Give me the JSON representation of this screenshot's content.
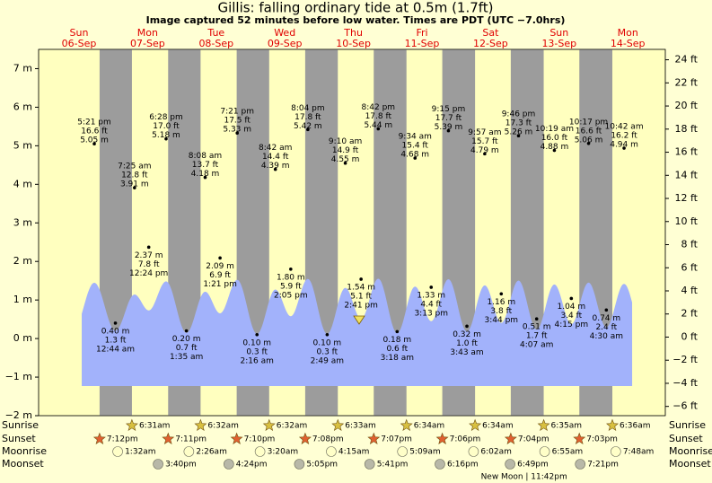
{
  "chart_data": {
    "type": "tide",
    "title": "Gillis: falling  ordinary tide at 0.5m (1.7ft)",
    "subtitle": "Image captured 52 minutes before low water. Times are PDT (UTC −7.0hrs)",
    "ylim": [
      -2,
      7.5
    ],
    "yticks": [
      {
        "value": 7,
        "label": "7 m"
      },
      {
        "value": 6,
        "label": "6 m"
      },
      {
        "value": 5,
        "label": "5 m"
      },
      {
        "value": 4,
        "label": "4 m"
      },
      {
        "value": 3,
        "label": "3 m"
      },
      {
        "value": 2,
        "label": "2 m"
      },
      {
        "value": 1,
        "label": "1 m"
      },
      {
        "value": 0,
        "label": "0 m"
      },
      {
        "value": -1,
        "label": "−1 m"
      },
      {
        "value": -2,
        "label": "−2 m"
      }
    ],
    "y2lim": [
      -6.8,
      24.9
    ],
    "y2ticks": [
      {
        "value": 24,
        "label": "24 ft"
      },
      {
        "value": 22,
        "label": "22 ft"
      },
      {
        "value": 20,
        "label": "20 ft"
      },
      {
        "value": 18,
        "label": "18 ft"
      },
      {
        "value": 16,
        "label": "16 ft"
      },
      {
        "value": 14,
        "label": "14 ft"
      },
      {
        "value": 12,
        "label": "12 ft"
      },
      {
        "value": 10,
        "label": "10 ft"
      },
      {
        "value": 8,
        "label": "8 ft"
      },
      {
        "value": 6,
        "label": "6 ft"
      },
      {
        "value": 4,
        "label": "4 ft"
      },
      {
        "value": 2,
        "label": "2 ft"
      },
      {
        "value": 0,
        "label": "0 ft"
      },
      {
        "value": -2,
        "label": "−2 ft"
      },
      {
        "value": -4,
        "label": "−4 ft"
      },
      {
        "value": -6,
        "label": "−6 ft"
      }
    ],
    "row_labels": {
      "sunrise": "Sunrise",
      "sunset": "Sunset",
      "moonrise": "Moonrise",
      "moonset": "Moonset"
    },
    "days": [
      {
        "name": "Sun",
        "date": "06-Sep",
        "sunset": "7:12pm",
        "tides": [
          {
            "time": "5:21 pm",
            "value": 5.05,
            "label": "5.05 m",
            "ft": "16.6 ft"
          }
        ]
      },
      {
        "name": "Mon",
        "date": "07-Sep",
        "sunrise": "6:31am",
        "sunset": "7:11pm",
        "moonrise": "1:32am",
        "moonset": "3:40pm",
        "tides": [
          {
            "time": "12:44 am",
            "value": 0.4,
            "label": "0.40 m",
            "ft": "1.3 ft"
          },
          {
            "time": "7:25 am",
            "value": 3.91,
            "label": "3.91 m",
            "ft": "12.8 ft"
          },
          {
            "time": "12:24 pm",
            "value": 2.37,
            "label": "2.37 m",
            "ft": "7.8 ft"
          },
          {
            "time": "6:28 pm",
            "value": 5.18,
            "label": "5.18 m",
            "ft": "17.0 ft"
          }
        ]
      },
      {
        "name": "Tue",
        "date": "08-Sep",
        "sunrise": "6:32am",
        "sunset": "7:10pm",
        "moonrise": "2:26am",
        "moonset": "4:24pm",
        "tides": [
          {
            "time": "1:35 am",
            "value": 0.2,
            "label": "0.20 m",
            "ft": "0.7 ft"
          },
          {
            "time": "8:08 am",
            "value": 4.18,
            "label": "4.18 m",
            "ft": "13.7 ft"
          },
          {
            "time": "1:21 pm",
            "value": 2.09,
            "label": "2.09 m",
            "ft": "6.9 ft"
          },
          {
            "time": "7:21 pm",
            "value": 5.33,
            "label": "5.33 m",
            "ft": "17.5 ft"
          }
        ]
      },
      {
        "name": "Wed",
        "date": "09-Sep",
        "sunrise": "6:32am",
        "sunset": "7:08pm",
        "moonrise": "3:20am",
        "moonset": "5:05pm",
        "tides": [
          {
            "time": "2:16 am",
            "value": 0.1,
            "label": "0.10 m",
            "ft": "0.3 ft"
          },
          {
            "time": "8:42 am",
            "value": 4.39,
            "label": "4.39 m",
            "ft": "14.4 ft"
          },
          {
            "time": "2:05 pm",
            "value": 1.8,
            "label": "1.80 m",
            "ft": "5.9 ft"
          },
          {
            "time": "8:04 pm",
            "value": 5.42,
            "label": "5.42 m",
            "ft": "17.8 ft"
          }
        ]
      },
      {
        "name": "Thu",
        "date": "10-Sep",
        "sunrise": "6:33am",
        "sunset": "7:07pm",
        "moonrise": "4:15am",
        "moonset": "5:41pm",
        "tides": [
          {
            "time": "2:49 am",
            "value": 0.1,
            "label": "0.10 m",
            "ft": "0.3 ft"
          },
          {
            "time": "9:10 am",
            "value": 4.55,
            "label": "4.55 m",
            "ft": "14.9 ft"
          },
          {
            "time": "2:41 pm",
            "value": 1.54,
            "label": "1.54 m",
            "ft": "5.1 ft"
          },
          {
            "time": "8:42 pm",
            "value": 5.44,
            "label": "5.44 m",
            "ft": "17.8 ft"
          }
        ]
      },
      {
        "name": "Fri",
        "date": "11-Sep",
        "sunrise": "6:34am",
        "sunset": "7:06pm",
        "moonrise": "5:09am",
        "moonset": "6:16pm",
        "tides": [
          {
            "time": "3:18 am",
            "value": 0.18,
            "label": "0.18 m",
            "ft": "0.6 ft"
          },
          {
            "time": "9:34 am",
            "value": 4.68,
            "label": "4.68 m",
            "ft": "15.4 ft"
          },
          {
            "time": "3:13 pm",
            "value": 1.33,
            "label": "1.33 m",
            "ft": "4.4 ft"
          },
          {
            "time": "9:15 pm",
            "value": 5.39,
            "label": "5.39 m",
            "ft": "17.7 ft"
          }
        ]
      },
      {
        "name": "Sat",
        "date": "12-Sep",
        "sunrise": "6:34am",
        "sunset": "7:04pm",
        "moonrise": "6:02am",
        "moonset": "6:49pm",
        "moon_phase": "New Moon | 11:42pm",
        "tides": [
          {
            "time": "3:43 am",
            "value": 0.32,
            "label": "0.32 m",
            "ft": "1.0 ft"
          },
          {
            "time": "9:57 am",
            "value": 4.79,
            "label": "4.79 m",
            "ft": "15.7 ft"
          },
          {
            "time": "3:44 pm",
            "value": 1.16,
            "label": "1.16 m",
            "ft": "3.8 ft"
          },
          {
            "time": "9:46 pm",
            "value": 5.26,
            "label": "5.26 m",
            "ft": "17.3 ft"
          }
        ]
      },
      {
        "name": "Sun",
        "date": "13-Sep",
        "sunrise": "6:35am",
        "sunset": "7:03pm",
        "moonrise": "6:55am",
        "moonset": "7:21pm",
        "tides": [
          {
            "time": "4:07 am",
            "value": 0.51,
            "label": "0.51 m",
            "ft": "1.7 ft"
          },
          {
            "time": "10:19 am",
            "value": 4.88,
            "label": "4.88 m",
            "ft": "16.0 ft"
          },
          {
            "time": "4:15 pm",
            "value": 1.04,
            "label": "1.04 m",
            "ft": "3.4 ft"
          },
          {
            "time": "10:17 pm",
            "value": 5.06,
            "label": "5.06 m",
            "ft": "16.6 ft"
          }
        ]
      },
      {
        "name": "Mon",
        "date": "14-Sep",
        "sunrise": "6:36am",
        "moonrise": "7:48am",
        "tides": [
          {
            "time": "4:30 am",
            "value": 0.74,
            "label": "0.74 m",
            "ft": "2.4 ft"
          },
          {
            "time": "10:42 am",
            "value": 4.94,
            "label": "4.94 m",
            "ft": "16.2 ft"
          }
        ]
      }
    ]
  }
}
